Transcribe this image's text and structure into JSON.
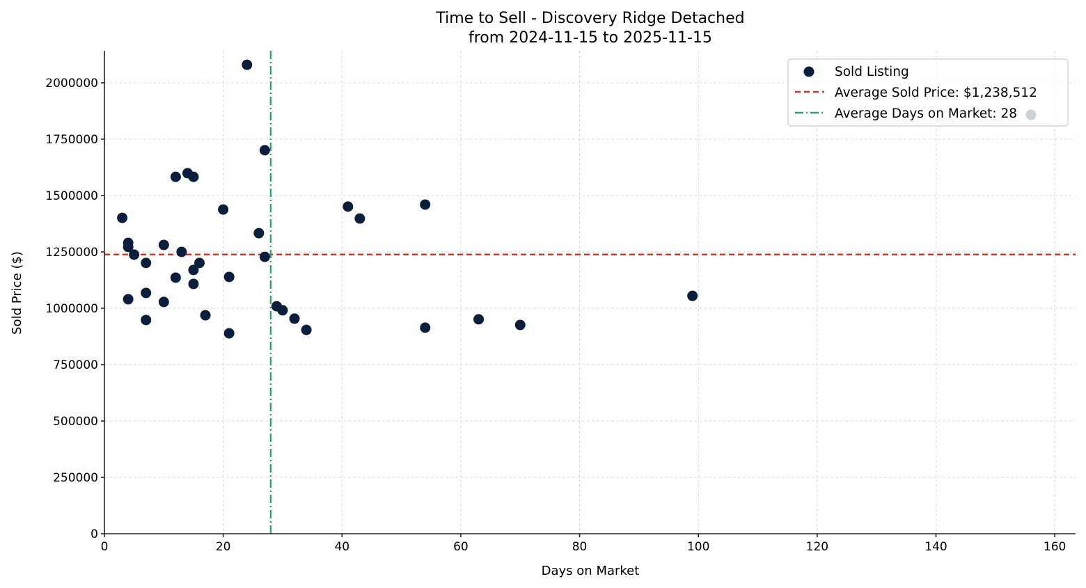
{
  "chart_data": {
    "type": "scatter",
    "title": "Time to Sell - Discovery Ridge Detached",
    "subtitle": "from 2024-11-15 to 2025-11-15",
    "xlabel": "Days on Market",
    "ylabel": "Sold Price ($)",
    "xlim": [
      0,
      163.5
    ],
    "ylim": [
      0,
      2142000
    ],
    "xticks": [
      0,
      20,
      40,
      60,
      80,
      100,
      120,
      140,
      160
    ],
    "yticks": [
      0,
      250000,
      500000,
      750000,
      1000000,
      1250000,
      1500000,
      1750000,
      2000000
    ],
    "xtick_labels": [
      "0",
      "20",
      "40",
      "60",
      "80",
      "100",
      "120",
      "140",
      "160"
    ],
    "ytick_labels": [
      "0",
      "250000",
      "500000",
      "750000",
      "1000000",
      "1250000",
      "1500000",
      "1750000",
      "2000000"
    ],
    "grid": true,
    "legend_position": "upper right",
    "series": [
      {
        "name": "Sold Listing",
        "kind": "scatter",
        "color": "#0b1f3d",
        "points": [
          {
            "x": 3,
            "y": 1401000
          },
          {
            "x": 4,
            "y": 1290000
          },
          {
            "x": 4,
            "y": 1272000
          },
          {
            "x": 5,
            "y": 1238000
          },
          {
            "x": 4,
            "y": 1040000
          },
          {
            "x": 7,
            "y": 1201000
          },
          {
            "x": 7,
            "y": 1068000
          },
          {
            "x": 7,
            "y": 948000
          },
          {
            "x": 10,
            "y": 1281000
          },
          {
            "x": 10,
            "y": 1028000
          },
          {
            "x": 12,
            "y": 1583000
          },
          {
            "x": 12,
            "y": 1136000
          },
          {
            "x": 13,
            "y": 1250000
          },
          {
            "x": 14,
            "y": 1599000
          },
          {
            "x": 15,
            "y": 1583000
          },
          {
            "x": 15,
            "y": 1170000
          },
          {
            "x": 15,
            "y": 1108000
          },
          {
            "x": 16,
            "y": 1201000
          },
          {
            "x": 17,
            "y": 969000
          },
          {
            "x": 20,
            "y": 1438000
          },
          {
            "x": 21,
            "y": 1139000
          },
          {
            "x": 21,
            "y": 889000
          },
          {
            "x": 24,
            "y": 2080000
          },
          {
            "x": 26,
            "y": 1333000
          },
          {
            "x": 27,
            "y": 1701000
          },
          {
            "x": 27,
            "y": 1228000
          },
          {
            "x": 29,
            "y": 1009000
          },
          {
            "x": 30,
            "y": 991000
          },
          {
            "x": 32,
            "y": 954000
          },
          {
            "x": 34,
            "y": 904000
          },
          {
            "x": 41,
            "y": 1451000
          },
          {
            "x": 43,
            "y": 1398000
          },
          {
            "x": 54,
            "y": 1460000
          },
          {
            "x": 54,
            "y": 914000
          },
          {
            "x": 63,
            "y": 951000
          },
          {
            "x": 70,
            "y": 926000
          },
          {
            "x": 99,
            "y": 1055000
          },
          {
            "x": 156,
            "y": 1858000
          }
        ]
      },
      {
        "name": "Average Sold Price: $1,238,512",
        "kind": "hline",
        "value": 1238512,
        "color": "#c0392b",
        "style": "dashed"
      },
      {
        "name": "Average Days on Market: 28",
        "kind": "vline",
        "value": 28,
        "color": "#2ca56b",
        "style": "dashdot"
      }
    ]
  },
  "legend": {
    "items": [
      {
        "label": "Sold Listing"
      },
      {
        "label": "Average Sold Price: $1,238,512"
      },
      {
        "label": "Average Days on Market: 28"
      }
    ]
  }
}
